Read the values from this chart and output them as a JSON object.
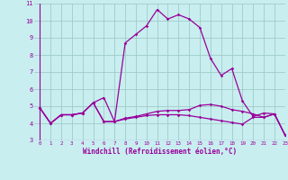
{
  "xlabel": "Windchill (Refroidissement éolien,°C)",
  "xlim": [
    -0.5,
    23
  ],
  "ylim": [
    3,
    11
  ],
  "yticks": [
    3,
    4,
    5,
    6,
    7,
    8,
    9,
    10,
    11
  ],
  "xticks": [
    0,
    1,
    2,
    3,
    4,
    5,
    6,
    7,
    8,
    9,
    10,
    11,
    12,
    13,
    14,
    15,
    16,
    17,
    18,
    19,
    20,
    21,
    22,
    23
  ],
  "background_color": "#c8eef0",
  "grid_color": "#a0ccc8",
  "line_color": "#990099",
  "series": {
    "line1": [
      4.9,
      4.0,
      4.5,
      4.5,
      4.6,
      5.2,
      5.5,
      4.1,
      8.7,
      9.2,
      9.7,
      10.65,
      10.1,
      10.35,
      10.1,
      9.6,
      7.8,
      6.8,
      7.2,
      5.3,
      4.4,
      4.6,
      4.55,
      3.3
    ],
    "line2": [
      4.9,
      4.0,
      4.5,
      4.5,
      4.6,
      5.2,
      4.1,
      4.1,
      4.3,
      4.4,
      4.55,
      4.7,
      4.75,
      4.75,
      4.8,
      5.05,
      5.1,
      5.0,
      4.8,
      4.7,
      4.55,
      4.35,
      4.55,
      3.3
    ],
    "line3": [
      4.9,
      4.0,
      4.5,
      4.5,
      4.6,
      5.2,
      4.1,
      4.1,
      4.25,
      4.35,
      4.45,
      4.5,
      4.5,
      4.5,
      4.45,
      4.35,
      4.25,
      4.15,
      4.05,
      3.95,
      4.35,
      4.35,
      4.55,
      3.3
    ]
  }
}
